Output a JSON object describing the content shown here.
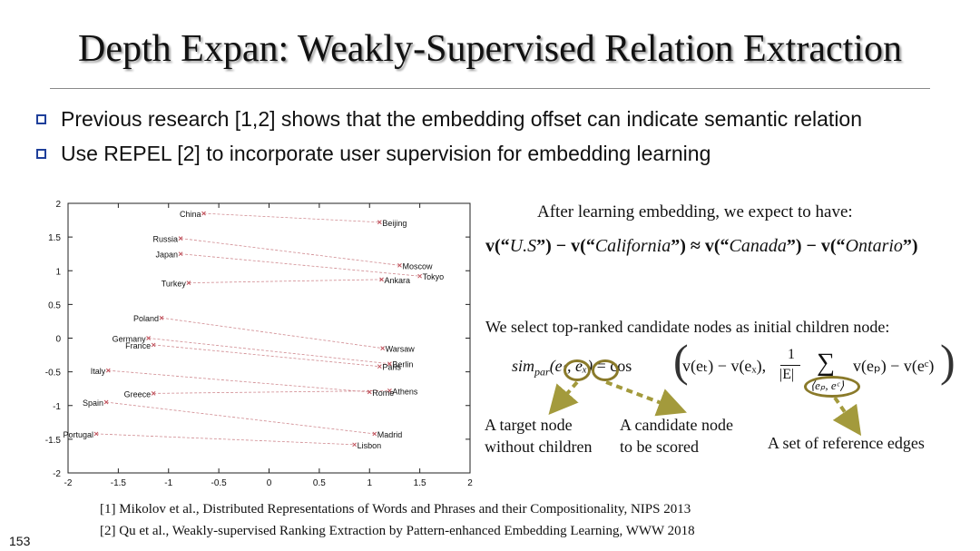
{
  "title": "Depth Expan: Weakly-Supervised Relation Extraction",
  "bullets": [
    "Previous research [1,2] shows that the embedding offset can indicate semantic relation",
    "Use REPEL [2] to incorporate user supervision for embedding learning"
  ],
  "right": {
    "after_text": "After learning embedding, we expect to have:",
    "eq1_parts": [
      "v(“",
      "U.S",
      "”) − v(“",
      "California",
      "”) ≈ v(“",
      "Canada",
      "”) − v(“",
      "Ontario",
      "”)"
    ],
    "select_text": "We select top-ranked candidate nodes as initial children node:",
    "eq2_left": "sim",
    "eq2_sub": "par",
    "eq2_args": "(eₜ, eₓ)",
    "eq2_rhs_1": "= cos",
    "eq2_term1": "v(eₜ) − v(eₓ),",
    "eq2_frac_num": "1",
    "eq2_frac_den": "|E|",
    "eq2_sum": "∑",
    "eq2_sum_sub": "⟨eₚ, eᶜ⟩",
    "eq2_term2": "v(eₚ) − v(eᶜ)",
    "ann_target": [
      "A target node",
      "without children"
    ],
    "ann_candidate": [
      "A candidate node",
      "to be scored"
    ],
    "ann_edges": "A set of reference edges",
    "accent_color": "#a39a3c"
  },
  "refs": [
    "[1] Mikolov et al., Distributed Representations of Words and Phrases and their Compositionality, NIPS 2013",
    "[2] Qu et al., Weakly-supervised Ranking Extraction by Pattern-enhanced Embedding Learning, WWW 2018"
  ],
  "page_number": "153",
  "chart_data": {
    "type": "scatter",
    "xlim": [
      -2,
      2
    ],
    "ylim": [
      -2,
      2
    ],
    "xticks": [
      "-2",
      "-1.5",
      "-1",
      "-0.5",
      "0",
      "0.5",
      "1",
      "1.5",
      "2"
    ],
    "yticks": [
      "2",
      "1.5",
      "1",
      "0.5",
      "0",
      "-0.5",
      "-1",
      "-1.5",
      "-2"
    ],
    "grid": false,
    "countries": [
      {
        "name": "China",
        "x": -0.65,
        "y": 1.85
      },
      {
        "name": "Russia",
        "x": -0.88,
        "y": 1.48
      },
      {
        "name": "Japan",
        "x": -0.88,
        "y": 1.25
      },
      {
        "name": "Turkey",
        "x": -0.8,
        "y": 0.82
      },
      {
        "name": "Poland",
        "x": -1.07,
        "y": 0.3
      },
      {
        "name": "Germany",
        "x": -1.2,
        "y": 0.0
      },
      {
        "name": "France",
        "x": -1.15,
        "y": -0.1
      },
      {
        "name": "Italy",
        "x": -1.6,
        "y": -0.48
      },
      {
        "name": "Greece",
        "x": -1.15,
        "y": -0.82
      },
      {
        "name": "Spain",
        "x": -1.62,
        "y": -0.95
      },
      {
        "name": "Portugal",
        "x": -1.72,
        "y": -1.42
      }
    ],
    "capitals": [
      {
        "name": "Beijing",
        "x": 1.1,
        "y": 1.72
      },
      {
        "name": "Moscow",
        "x": 1.3,
        "y": 1.08
      },
      {
        "name": "Tokyo",
        "x": 1.5,
        "y": 0.92
      },
      {
        "name": "Ankara",
        "x": 1.12,
        "y": 0.87
      },
      {
        "name": "Warsaw",
        "x": 1.13,
        "y": -0.15
      },
      {
        "name": "Berlin",
        "x": 1.2,
        "y": -0.38
      },
      {
        "name": "Paris",
        "x": 1.1,
        "y": -0.42
      },
      {
        "name": "Athens",
        "x": 1.2,
        "y": -0.78
      },
      {
        "name": "Rome",
        "x": 1.0,
        "y": -0.8
      },
      {
        "name": "Madrid",
        "x": 1.05,
        "y": -1.42
      },
      {
        "name": "Lisbon",
        "x": 0.85,
        "y": -1.58
      }
    ],
    "pairs": [
      [
        "China",
        "Beijing"
      ],
      [
        "Russia",
        "Moscow"
      ],
      [
        "Japan",
        "Tokyo"
      ],
      [
        "Turkey",
        "Ankara"
      ],
      [
        "Poland",
        "Warsaw"
      ],
      [
        "Germany",
        "Berlin"
      ],
      [
        "France",
        "Paris"
      ],
      [
        "Italy",
        "Rome"
      ],
      [
        "Greece",
        "Athens"
      ],
      [
        "Spain",
        "Madrid"
      ],
      [
        "Portugal",
        "Lisbon"
      ]
    ]
  }
}
